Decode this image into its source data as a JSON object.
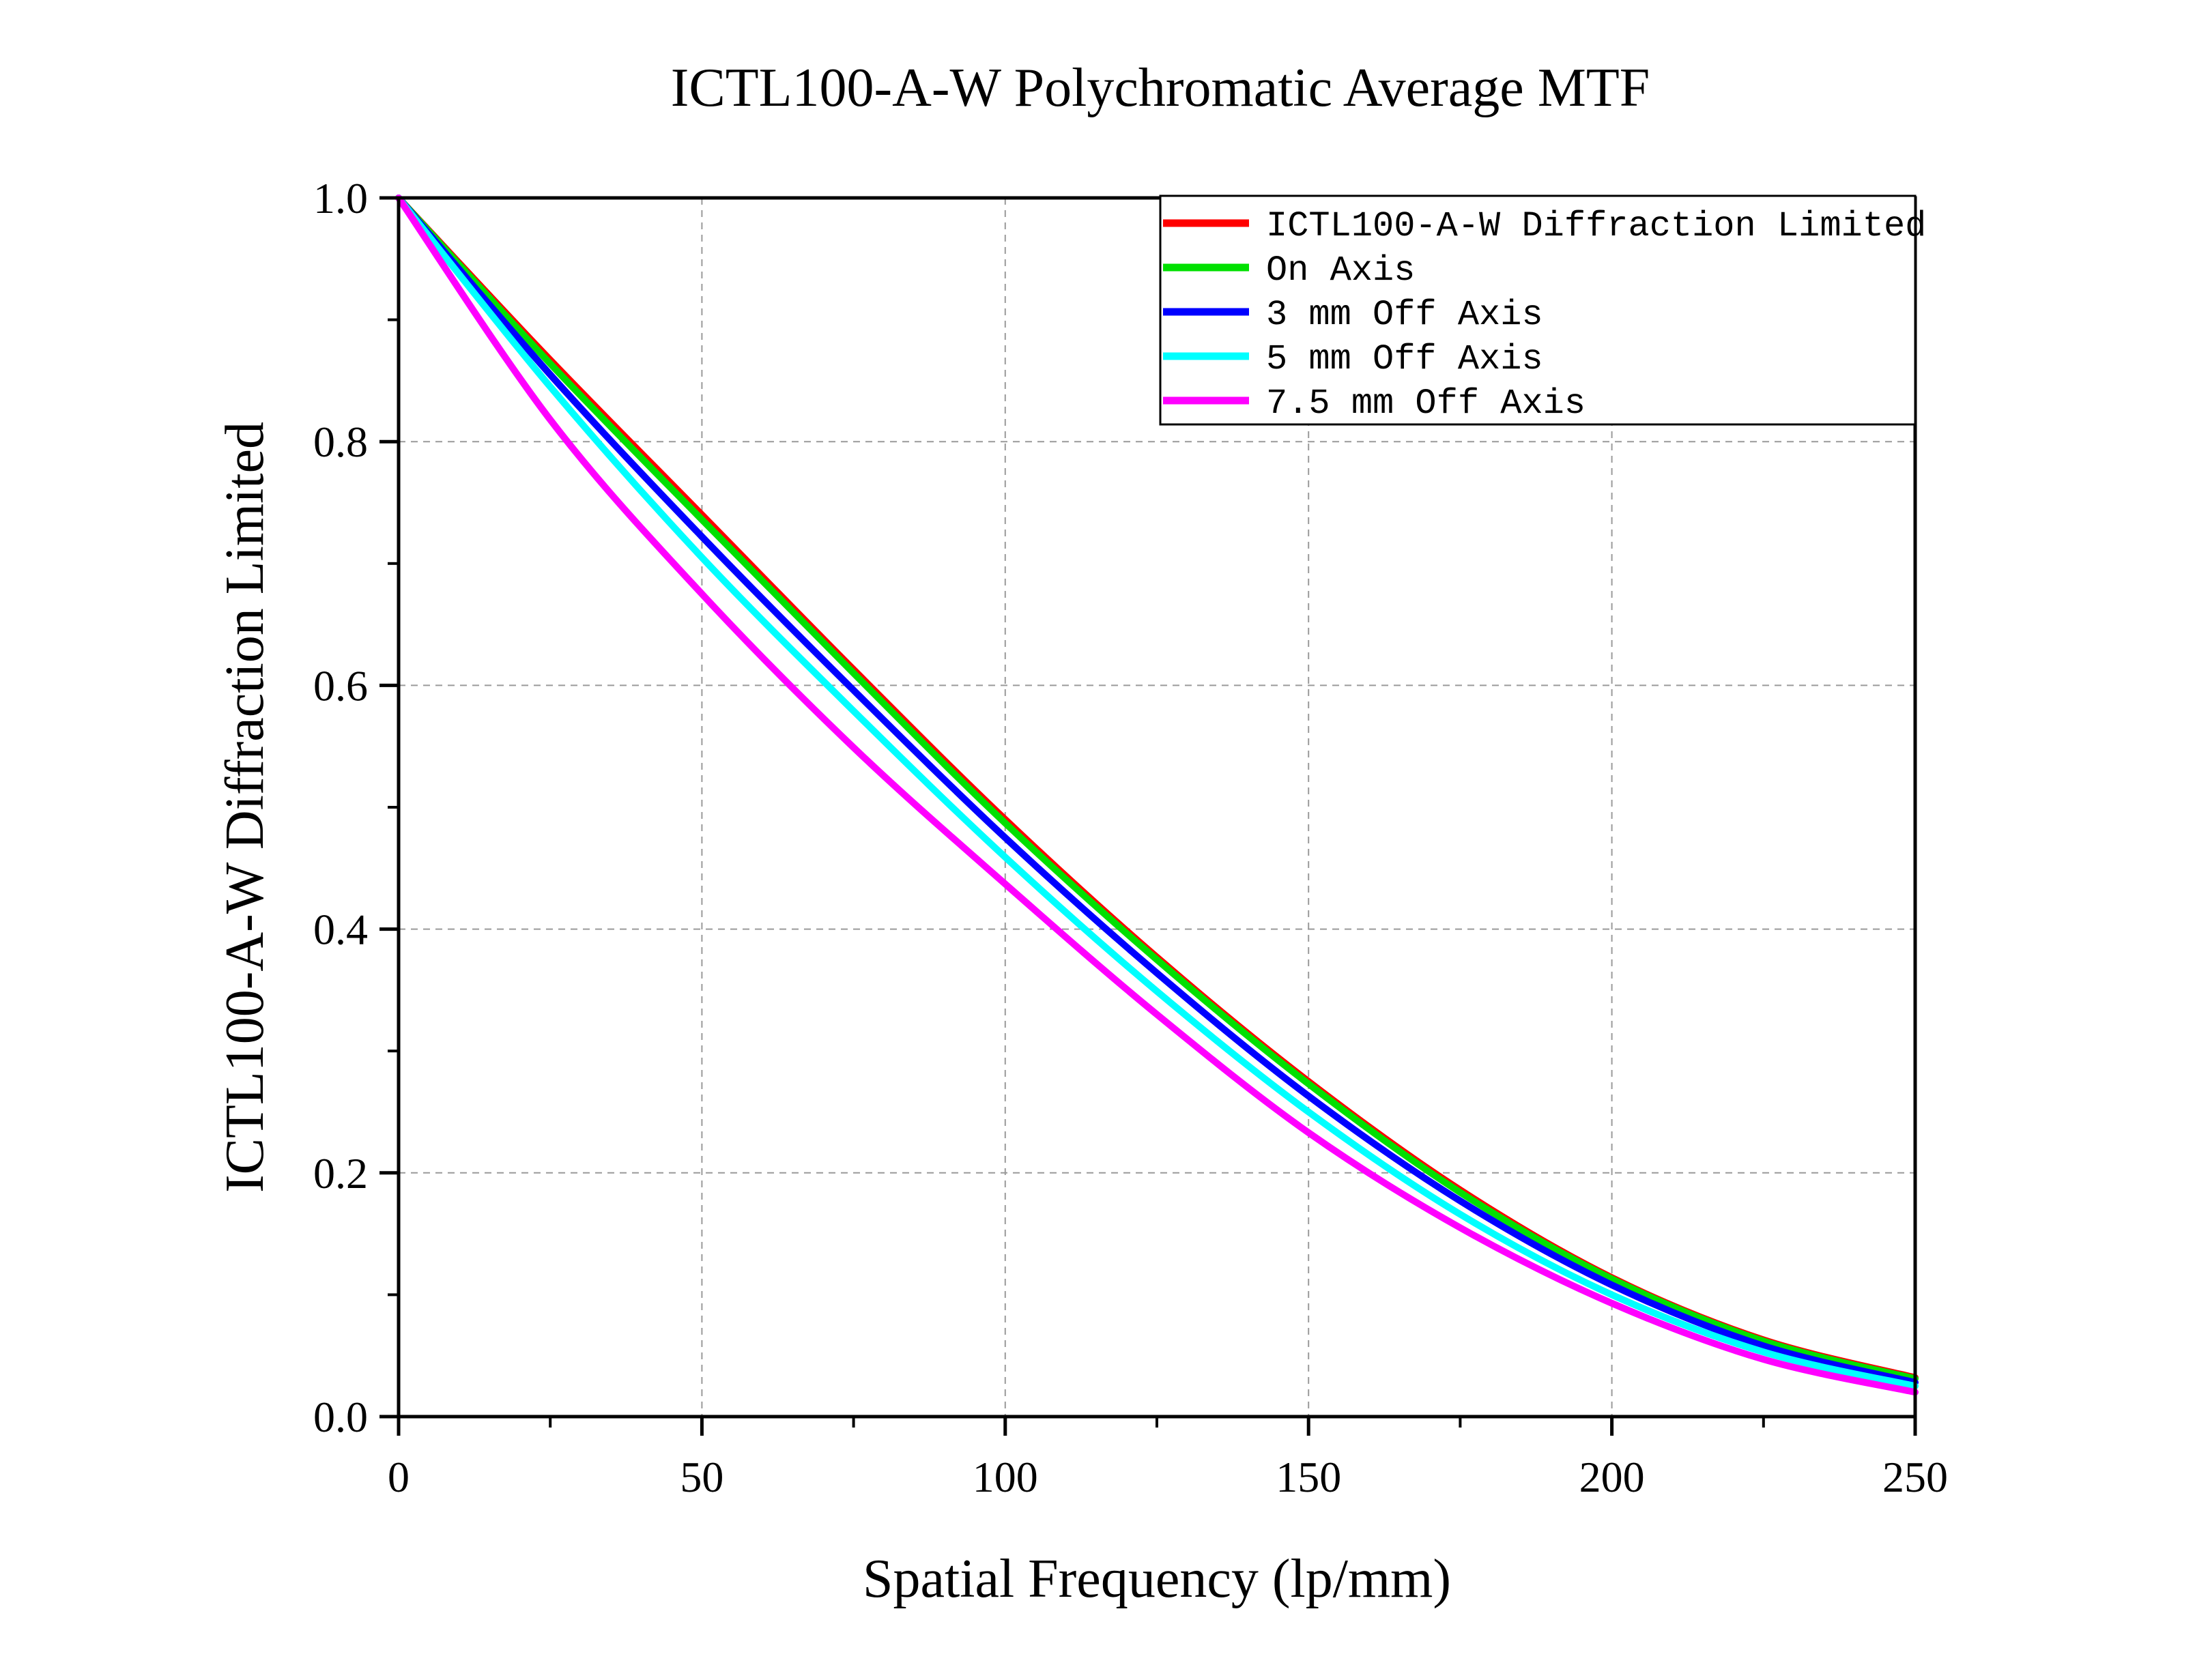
{
  "chart_data": {
    "type": "line",
    "title": "ICTL100-A-W Polychromatic Average MTF",
    "xlabel": "Spatial Frequency (lp/mm)",
    "ylabel": "ICTL100-A-W Diffraction Limited",
    "xlim": [
      0,
      250
    ],
    "ylim": [
      0,
      1.0
    ],
    "x_ticks": [
      0,
      50,
      100,
      150,
      200,
      250
    ],
    "x_tick_labels": [
      "0",
      "50",
      "100",
      "150",
      "200",
      "250"
    ],
    "y_ticks": [
      0,
      0.2,
      0.4,
      0.6,
      0.8,
      1.0
    ],
    "y_tick_labels": [
      "0.0",
      "0.2",
      "0.4",
      "0.6",
      "0.8",
      "1.0"
    ],
    "grid": true,
    "legend_position": "top-right",
    "x": [
      0,
      25,
      50,
      75,
      100,
      125,
      150,
      175,
      200,
      225,
      250
    ],
    "series": [
      {
        "name": "ICTL100-A-W Diffraction Limited",
        "color": "#ff0000",
        "values": [
          1.0,
          0.867,
          0.74,
          0.613,
          0.49,
          0.377,
          0.275,
          0.186,
          0.114,
          0.063,
          0.032
        ]
      },
      {
        "name": "On Axis",
        "color": "#00e000",
        "values": [
          1.0,
          0.864,
          0.736,
          0.61,
          0.487,
          0.375,
          0.273,
          0.184,
          0.113,
          0.062,
          0.031
        ]
      },
      {
        "name": "3 mm Off Axis",
        "color": "#0000ff",
        "values": [
          1.0,
          0.855,
          0.722,
          0.596,
          0.475,
          0.364,
          0.263,
          0.177,
          0.108,
          0.058,
          0.028
        ]
      },
      {
        "name": "5 mm Off Axis",
        "color": "#00ffff",
        "values": [
          1.0,
          0.845,
          0.705,
          0.579,
          0.459,
          0.349,
          0.25,
          0.166,
          0.1,
          0.053,
          0.025
        ]
      },
      {
        "name": "7.5 mm Off Axis",
        "color": "#ff00ff",
        "values": [
          1.0,
          0.818,
          0.675,
          0.549,
          0.437,
          0.33,
          0.233,
          0.155,
          0.093,
          0.047,
          0.02
        ]
      }
    ]
  }
}
